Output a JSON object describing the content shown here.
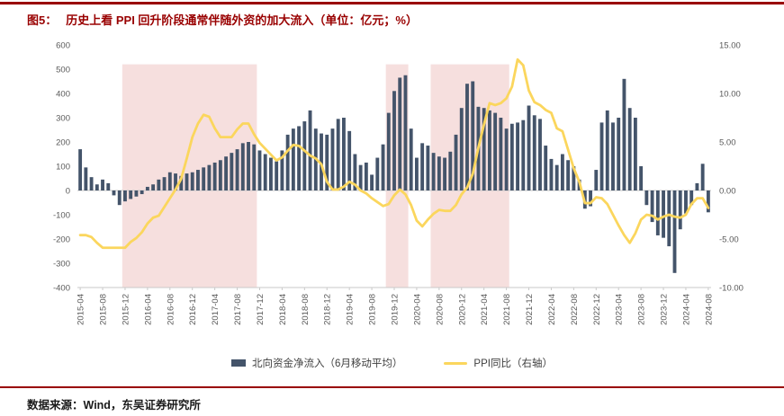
{
  "header": {
    "figure_label": "图5：",
    "title": "历史上看 PPI 回升阶段通常伴随外资的加大流入（单位：亿元；%）"
  },
  "legend": {
    "bars": "北向资金净流入（6月移动平均）",
    "line": "PPI同比（右轴）"
  },
  "footer": {
    "source": "数据来源：Wind，东吴证券研究所"
  },
  "chart_data": {
    "type": "combo-bar-line",
    "x_start": "2015-04",
    "x_end": "2024-08",
    "x_tick_labels": [
      "2015-04",
      "2015-08",
      "2015-12",
      "2016-04",
      "2016-08",
      "2016-12",
      "2017-04",
      "2017-08",
      "2017-12",
      "2018-04",
      "2018-08",
      "2018-12",
      "2019-04",
      "2019-08",
      "2019-12",
      "2020-04",
      "2020-08",
      "2020-12",
      "2021-04",
      "2021-08",
      "2021-12",
      "2022-04",
      "2022-08",
      "2022-12",
      "2023-04",
      "2023-08",
      "2023-12",
      "2024-04",
      "2024-08"
    ],
    "left_axis": {
      "max": 600,
      "min": -400,
      "step": 100,
      "tick_labels": [
        "600",
        "500",
        "400",
        "300",
        "200",
        "100",
        "0",
        "-100",
        "-200",
        "-300",
        "-400"
      ]
    },
    "right_axis": {
      "max": 15,
      "min": -10,
      "tick_values": [
        15,
        10,
        5,
        0,
        -5,
        -10
      ],
      "tick_labels": [
        "15.00",
        "10.00",
        "5.00",
        "0.00",
        "-5.00",
        "-10.00"
      ]
    },
    "bars": {
      "name": "北向资金净流入（6月移动平均）",
      "values": [
        170,
        95,
        55,
        25,
        45,
        30,
        -20,
        -60,
        -45,
        -35,
        -25,
        -15,
        15,
        25,
        45,
        55,
        75,
        70,
        60,
        70,
        75,
        85,
        95,
        105,
        115,
        125,
        140,
        155,
        170,
        195,
        200,
        190,
        165,
        150,
        135,
        120,
        165,
        230,
        255,
        265,
        285,
        330,
        255,
        235,
        230,
        255,
        295,
        300,
        245,
        150,
        105,
        115,
        65,
        135,
        190,
        320,
        410,
        465,
        475,
        255,
        135,
        195,
        185,
        155,
        140,
        135,
        160,
        230,
        340,
        440,
        450,
        345,
        340,
        330,
        320,
        300,
        255,
        275,
        280,
        290,
        350,
        310,
        295,
        185,
        130,
        105,
        150,
        125,
        100,
        45,
        -75,
        -65,
        85,
        280,
        330,
        280,
        300,
        460,
        340,
        300,
        100,
        -60,
        -130,
        -185,
        -195,
        -230,
        -340,
        -160,
        -95,
        -60,
        30,
        110,
        -90
      ]
    },
    "line": {
      "name": "PPI同比（右轴）",
      "values": [
        -4.6,
        -4.6,
        -4.8,
        -5.4,
        -5.9,
        -5.9,
        -5.9,
        -5.9,
        -5.9,
        -5.3,
        -4.9,
        -4.3,
        -3.4,
        -2.8,
        -2.6,
        -1.7,
        -0.8,
        0.1,
        1.2,
        3.3,
        5.5,
        6.9,
        7.8,
        7.6,
        6.4,
        5.5,
        5.5,
        5.5,
        6.3,
        6.9,
        6.9,
        5.8,
        4.9,
        4.3,
        3.7,
        3.1,
        3.4,
        4.1,
        4.7,
        4.6,
        4.1,
        3.6,
        3.3,
        2.7,
        0.9,
        0.1,
        0.1,
        0.4,
        0.9,
        0.6,
        0.0,
        -0.3,
        -0.8,
        -1.2,
        -1.6,
        -1.4,
        -0.5,
        0.1,
        -0.4,
        -1.5,
        -3.1,
        -3.7,
        -3.0,
        -2.4,
        -2.0,
        -2.1,
        -2.1,
        -1.5,
        -0.4,
        0.3,
        1.7,
        4.4,
        6.8,
        9.0,
        8.8,
        9.0,
        9.5,
        10.7,
        13.5,
        12.9,
        10.3,
        9.1,
        8.8,
        8.3,
        8.0,
        6.4,
        6.1,
        4.2,
        2.3,
        0.9,
        -1.3,
        -1.3,
        -0.7,
        -0.8,
        -1.4,
        -2.5,
        -3.6,
        -4.6,
        -5.4,
        -4.4,
        -3.0,
        -2.5,
        -2.6,
        -3.0,
        -2.7,
        -2.5,
        -2.7,
        -2.8,
        -2.5,
        -1.4,
        -0.8,
        -0.8,
        -1.8
      ]
    },
    "highlight_bands": [
      {
        "start": "2015-12",
        "end": "2017-11",
        "start_index": 8,
        "end_index": 31
      },
      {
        "start": "2019-11",
        "end": "2020-02",
        "start_index": 55,
        "end_index": 58
      },
      {
        "start": "2020-07",
        "end": "2021-08",
        "start_index": 63,
        "end_index": 76
      }
    ],
    "band_top_left_value": 520,
    "colors": {
      "bar": "#44546A",
      "line": "#FBD65D",
      "band": "#F6DFDE",
      "accent_red": "#990000",
      "axis_text": "#595959",
      "axis_line": "#c9c9c9"
    }
  }
}
